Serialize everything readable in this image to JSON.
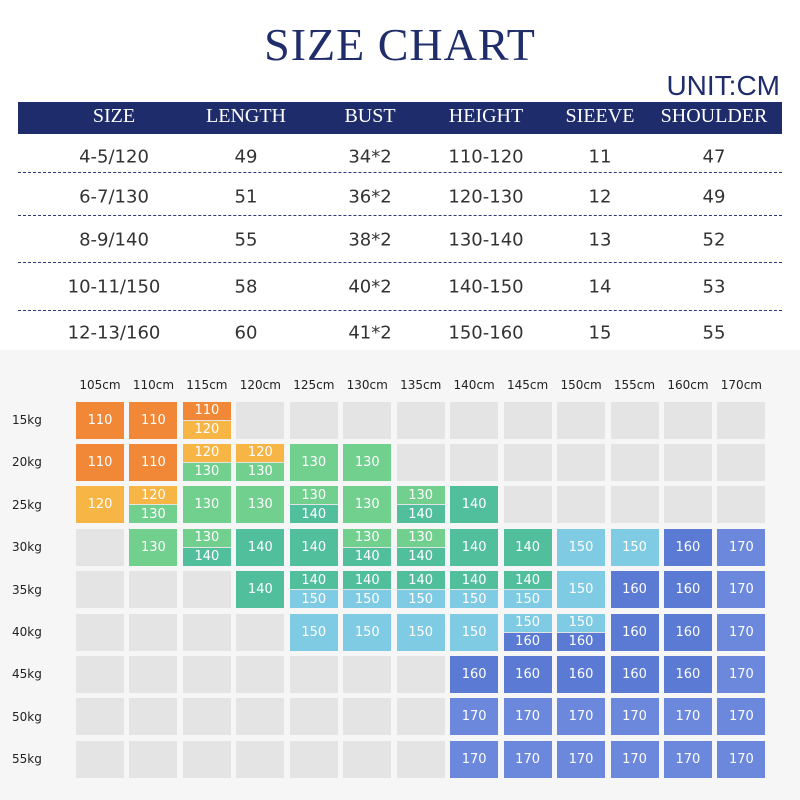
{
  "title": "SIZE CHART",
  "unit": "UNIT:CM",
  "table": {
    "header": [
      "SIZE",
      "LENGTH",
      "BUST",
      "HEIGHT",
      "SIEEVE",
      "SHOULDER"
    ],
    "rows": [
      [
        "4-5/120",
        "49",
        "34*2",
        "110-120",
        "11",
        "47"
      ],
      [
        "6-7/130",
        "51",
        "36*2",
        "120-130",
        "12",
        "49"
      ],
      [
        "8-9/140",
        "55",
        "38*2",
        "130-140",
        "13",
        "52"
      ],
      [
        "10-11/150",
        "58",
        "40*2",
        "140-150",
        "14",
        "53"
      ],
      [
        "12-13/160",
        "60",
        "41*2",
        "150-160",
        "15",
        "55"
      ]
    ]
  },
  "grid": {
    "columns": [
      "105cm",
      "110cm",
      "115cm",
      "120cm",
      "125cm",
      "130cm",
      "135cm",
      "140cm",
      "145cm",
      "150cm",
      "155cm",
      "160cm",
      "170cm"
    ],
    "rows": [
      "15kg",
      "20kg",
      "25kg",
      "30kg",
      "35kg",
      "40kg",
      "45kg",
      "50kg",
      "55kg"
    ],
    "colors": {
      "110": "#f08838",
      "120": "#f6b545",
      "130": "#72d08f",
      "140": "#52bf9c",
      "150": "#80cbe4",
      "160": "#5a7ad3",
      "170": "#6b88dc"
    },
    "cells": [
      [
        [
          "110"
        ],
        [
          "110"
        ],
        [
          "110",
          "120"
        ],
        [],
        [],
        [],
        [],
        [],
        [],
        [],
        [],
        [],
        []
      ],
      [
        [
          "110"
        ],
        [
          "110"
        ],
        [
          "120",
          "130"
        ],
        [
          "120",
          "130"
        ],
        [
          "130"
        ],
        [
          "130"
        ],
        [],
        [],
        [],
        [],
        [],
        [],
        []
      ],
      [
        [
          "120"
        ],
        [
          "120",
          "130"
        ],
        [
          "130"
        ],
        [
          "130"
        ],
        [
          "130",
          "140"
        ],
        [
          "130"
        ],
        [
          "130",
          "140"
        ],
        [
          "140"
        ],
        [],
        [],
        [],
        [],
        []
      ],
      [
        [],
        [
          "130"
        ],
        [
          "130",
          "140"
        ],
        [
          "140"
        ],
        [
          "140"
        ],
        [
          "130",
          "140"
        ],
        [
          "130",
          "140"
        ],
        [
          "140"
        ],
        [
          "140"
        ],
        [
          "150"
        ],
        [
          "150"
        ],
        [
          "160"
        ],
        [
          "170"
        ]
      ],
      [
        [],
        [],
        [],
        [
          "140"
        ],
        [
          "140",
          "150"
        ],
        [
          "140",
          "150"
        ],
        [
          "140",
          "150"
        ],
        [
          "140",
          "150"
        ],
        [
          "140",
          "150"
        ],
        [
          "150"
        ],
        [
          "160"
        ],
        [
          "160"
        ],
        [
          "170"
        ]
      ],
      [
        [],
        [],
        [],
        [],
        [
          "150"
        ],
        [
          "150"
        ],
        [
          "150"
        ],
        [
          "150"
        ],
        [
          "150",
          "160"
        ],
        [
          "150",
          "160"
        ],
        [
          "160"
        ],
        [
          "160"
        ],
        [
          "170"
        ]
      ],
      [
        [],
        [],
        [],
        [],
        [],
        [],
        [],
        [
          "160"
        ],
        [
          "160"
        ],
        [
          "160"
        ],
        [
          "160"
        ],
        [
          "160"
        ],
        [
          "170"
        ]
      ],
      [
        [],
        [],
        [],
        [],
        [],
        [],
        [],
        [
          "170"
        ],
        [
          "170"
        ],
        [
          "170"
        ],
        [
          "170"
        ],
        [
          "170"
        ],
        [
          "170"
        ]
      ],
      [
        [],
        [],
        [],
        [],
        [],
        [],
        [],
        [
          "170"
        ],
        [
          "170"
        ],
        [
          "170"
        ],
        [
          "170"
        ],
        [
          "170"
        ],
        [
          "170"
        ]
      ]
    ]
  }
}
